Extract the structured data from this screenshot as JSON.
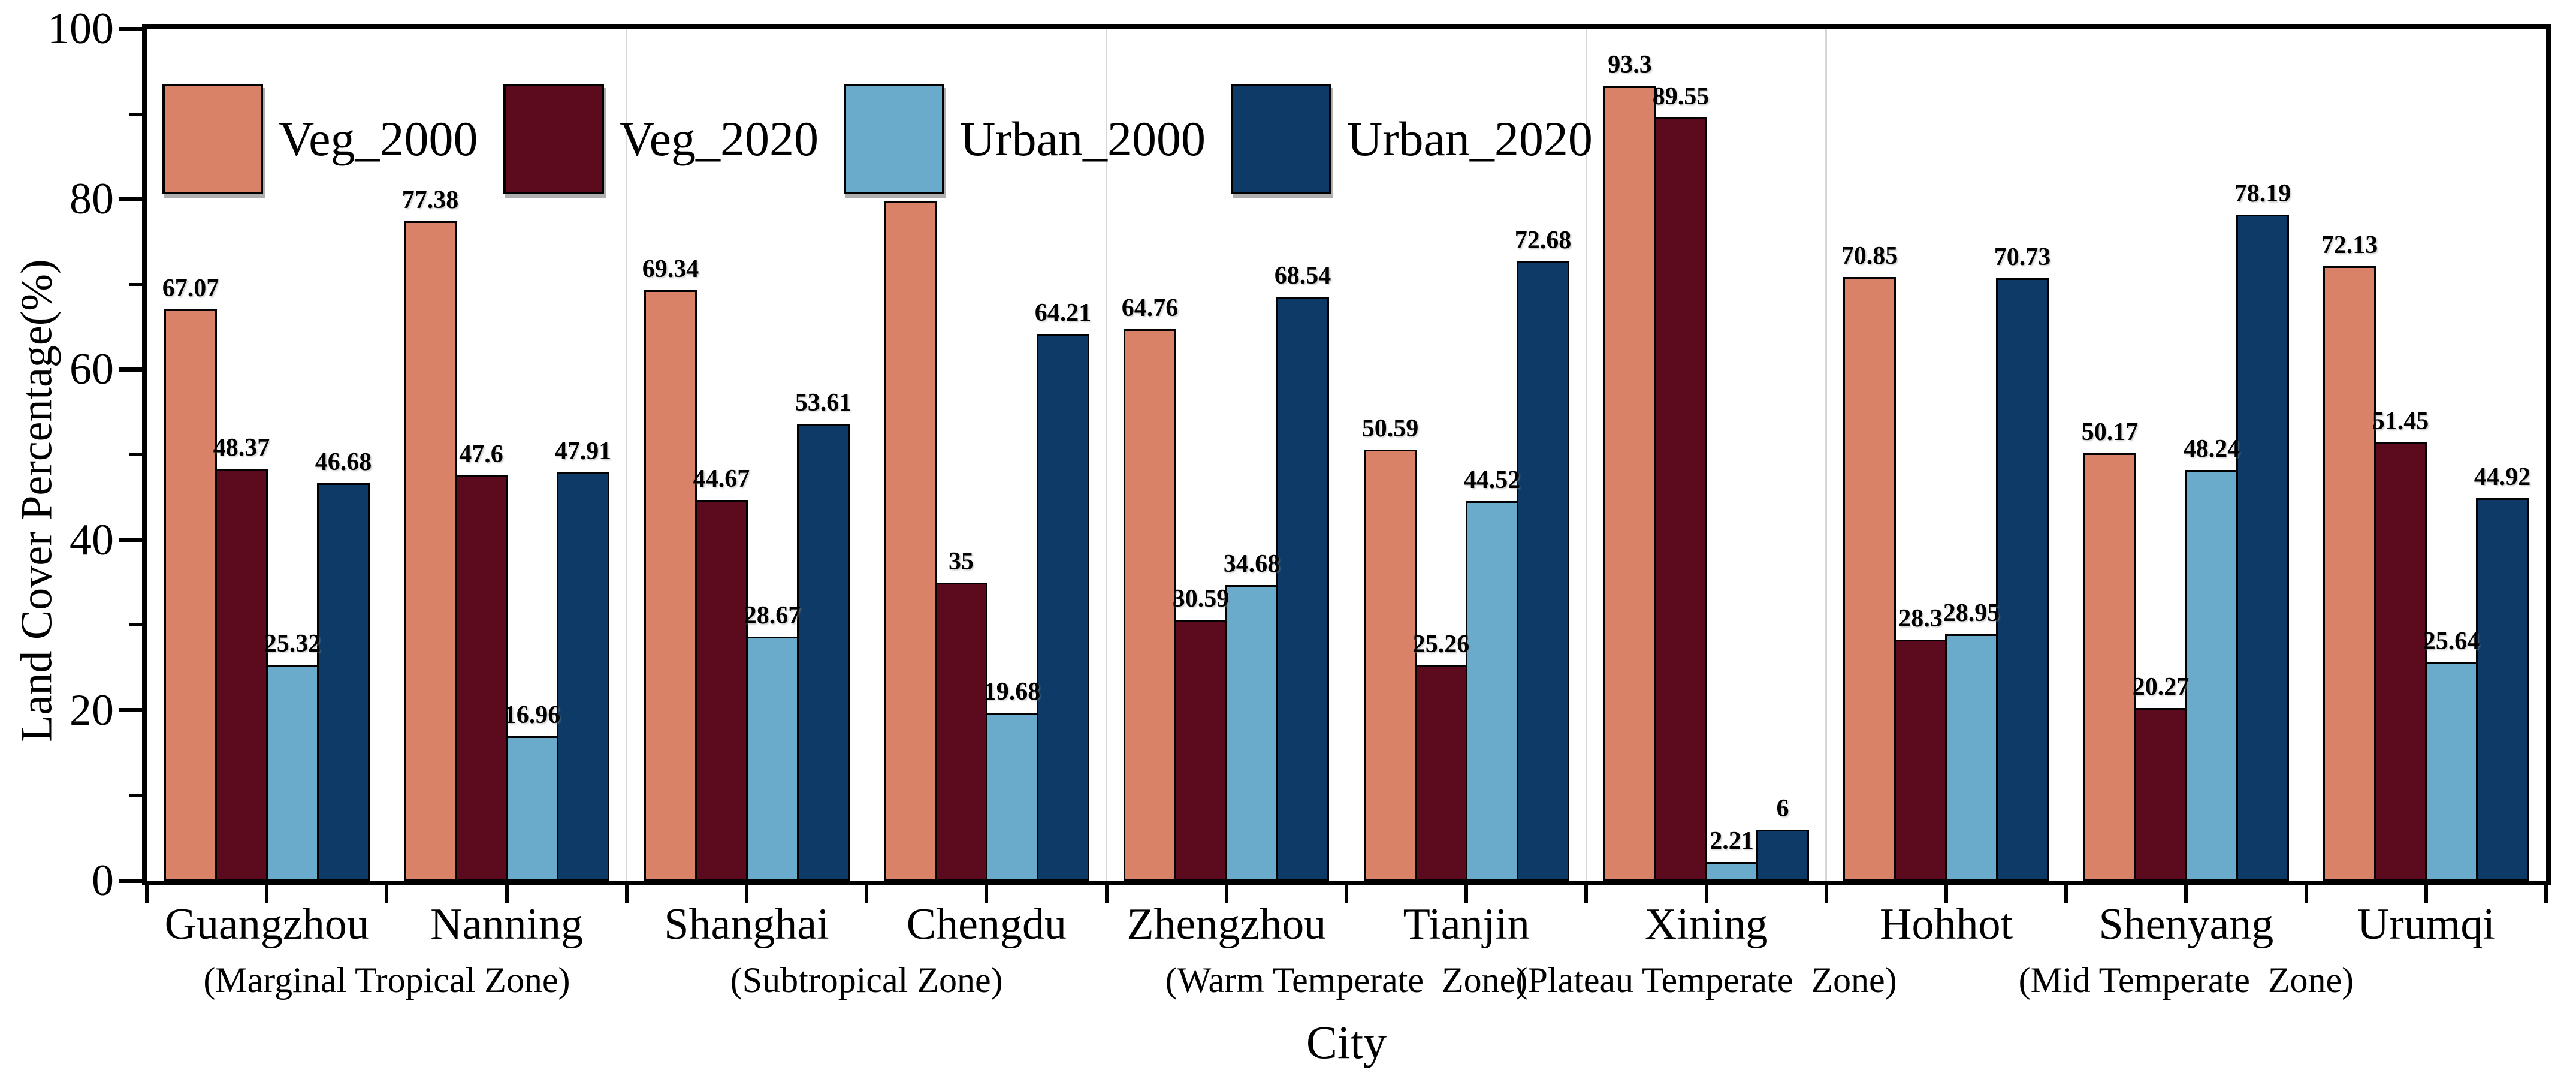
{
  "chart_data": {
    "type": "bar",
    "title": "",
    "xlabel": "City",
    "ylabel": "Land Cover Percentage(%)",
    "ylim": [
      0,
      100
    ],
    "yticks_major": [
      0,
      20,
      40,
      60,
      80,
      100
    ],
    "yticks_minor": [
      10,
      30,
      50,
      70,
      90
    ],
    "grid": false,
    "legend_position": "top-left-inside",
    "bar_value_labels": true,
    "categories": [
      "Guangzhou",
      "Nanning",
      "Shanghai",
      "Chengdu",
      "Zhengzhou",
      "Tianjin",
      "Xining",
      "Hohhot",
      "Shenyang",
      "Urumqi"
    ],
    "series": [
      {
        "name": "Veg_2000",
        "color": "#D98268",
        "values": [
          67.07,
          77.38,
          69.34,
          79.83,
          64.76,
          50.59,
          93.3,
          70.85,
          50.17,
          72.13
        ]
      },
      {
        "name": "Veg_2020",
        "color": "#5C0B1E",
        "values": [
          48.37,
          47.6,
          44.67,
          35,
          30.59,
          25.26,
          89.55,
          28.3,
          20.27,
          51.45
        ]
      },
      {
        "name": "Urban_2000",
        "color": "#6AAACB",
        "values": [
          25.32,
          16.96,
          28.67,
          19.68,
          34.68,
          44.52,
          2.21,
          28.95,
          48.24,
          25.64
        ]
      },
      {
        "name": "Urban_2020",
        "color": "#0D3A66",
        "values": [
          46.68,
          47.91,
          53.61,
          64.21,
          68.54,
          72.68,
          6,
          70.73,
          78.19,
          44.92
        ]
      }
    ],
    "zones": [
      {
        "label": "(Marginal Tropical Zone)",
        "start": 0,
        "end": 2
      },
      {
        "label": "(Subtropical Zone)",
        "start": 2,
        "end": 4
      },
      {
        "label": "(Warm Temperate  Zone)",
        "start": 4,
        "end": 6
      },
      {
        "label": "(Plateau Temperate  Zone)",
        "start": 6,
        "end": 7
      },
      {
        "label": "(Mid Temperate  Zone)",
        "start": 7,
        "end": 10
      }
    ],
    "zone_separators_after_category_index": [
      2,
      4,
      6,
      7
    ],
    "colors": {
      "axis": "#000000",
      "separator": "#d6d6d6",
      "background": "#ffffff"
    }
  }
}
